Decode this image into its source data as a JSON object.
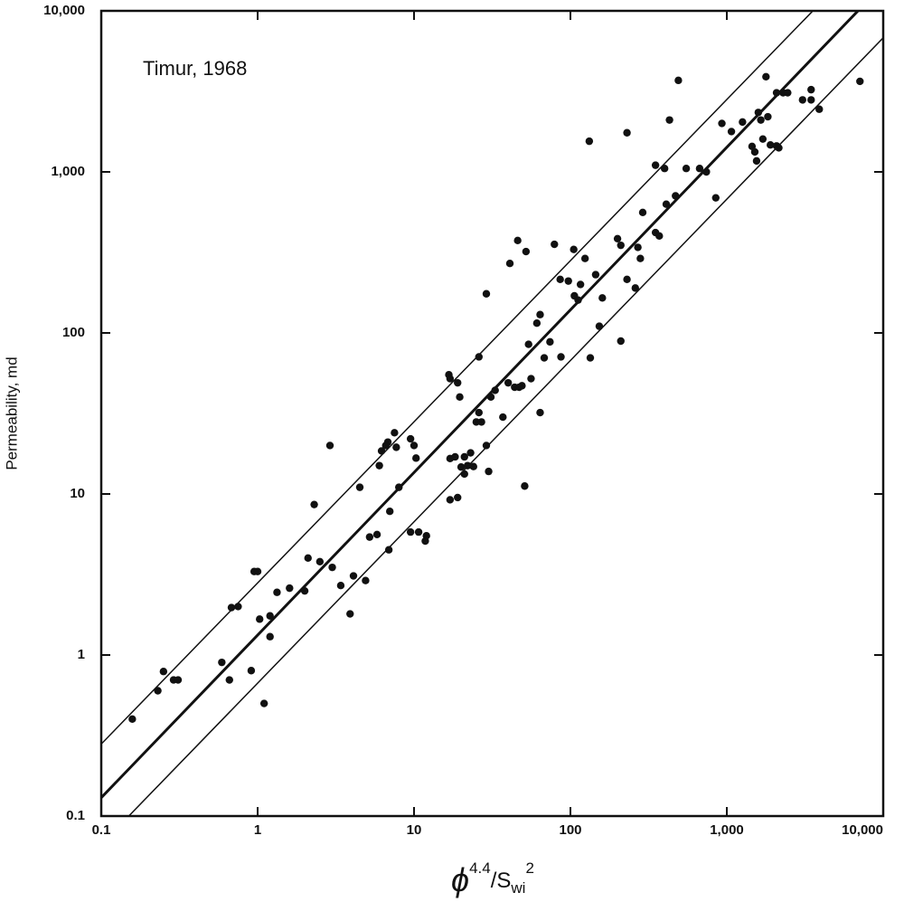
{
  "chart_data": {
    "type": "scatter",
    "annotation": "Timur, 1968",
    "ylabel": "Permeability, md",
    "xlabel": [
      "ϕ",
      "4.4",
      "/S",
      "wi",
      "2"
    ],
    "xscale": "log",
    "yscale": "log",
    "xlim": [
      0.1,
      10000
    ],
    "ylim": [
      0.1,
      10000
    ],
    "xticks": [
      0.1,
      1,
      10,
      100,
      {
        "value": 1000,
        "label": "1,000"
      },
      {
        "value": 10000,
        "label": "10,000"
      }
    ],
    "yticks": [
      0.1,
      1,
      10,
      100,
      {
        "value": 1000,
        "label": "1,000"
      },
      {
        "value": 10000,
        "label": "10,000"
      }
    ],
    "color": "#111111",
    "x": [
      0.158,
      0.23,
      0.25,
      0.29,
      0.31,
      0.59,
      0.66,
      0.68,
      0.75,
      0.91,
      0.95,
      1.0,
      1.03,
      1.1,
      1.2,
      1.2,
      1.33,
      1.6,
      2.0,
      2.1,
      2.3,
      2.5,
      2.9,
      3.0,
      3.4,
      3.9,
      4.1,
      4.5,
      4.9,
      5.2,
      5.8,
      6.0,
      6.2,
      6.6,
      6.8,
      6.9,
      7.0,
      7.5,
      7.7,
      8.0,
      9.5,
      9.5,
      10,
      10.3,
      10.7,
      11.8,
      12,
      16.7,
      17,
      17,
      17,
      18.3,
      19,
      19,
      19.6,
      20,
      21,
      21,
      22,
      23,
      24,
      25,
      26,
      26,
      27,
      29,
      29,
      30,
      31,
      33,
      37,
      40,
      41,
      44,
      46,
      47,
      49,
      51,
      52,
      54,
      56,
      61,
      64,
      64,
      68,
      74,
      79,
      86,
      87,
      97,
      105,
      106,
      112,
      116,
      124,
      132,
      134,
      145,
      153,
      160,
      200,
      210,
      210,
      230,
      230,
      260,
      270,
      280,
      290,
      350,
      350,
      400,
      410,
      470,
      370,
      490,
      430,
      550,
      670,
      740,
      850,
      930,
      1070,
      1260,
      1450,
      1510,
      1550,
      1590,
      1650,
      1700,
      1780,
      1830,
      1900,
      2080,
      2150,
      2080,
      2290,
      2450,
      3050,
      3460,
      3460,
      3900,
      7100
    ],
    "values": [
      0.4,
      0.6,
      0.79,
      0.7,
      0.7,
      0.9,
      0.7,
      1.97,
      2.0,
      0.8,
      3.3,
      3.3,
      1.67,
      0.5,
      1.3,
      1.75,
      2.45,
      2.6,
      2.5,
      4.0,
      8.6,
      3.8,
      20,
      3.5,
      2.7,
      1.8,
      3.1,
      11,
      2.9,
      5.4,
      5.6,
      15,
      18.5,
      20,
      21,
      4.5,
      7.8,
      24,
      19.5,
      11,
      5.8,
      22,
      20,
      16.7,
      5.8,
      5.1,
      5.5,
      55,
      52,
      16.6,
      9.2,
      17,
      49,
      9.5,
      40,
      14.7,
      17,
      13.3,
      15,
      18,
      14.8,
      28,
      71,
      32,
      28,
      20,
      175,
      13.8,
      40,
      44,
      30,
      49,
      270,
      46,
      375,
      46,
      47,
      11.2,
      320,
      85,
      52,
      115,
      130,
      32,
      70,
      88,
      355,
      215,
      71,
      210,
      330,
      170,
      160,
      200,
      290,
      1550,
      70,
      230,
      110,
      165,
      385,
      350,
      89,
      215,
      1750,
      190,
      340,
      290,
      560,
      420,
      1100,
      1050,
      630,
      710,
      400,
      3700,
      2100,
      1050,
      1050,
      1000,
      690,
      2000,
      1780,
      2040,
      1440,
      1330,
      1170,
      2340,
      2100,
      1600,
      3900,
      2200,
      1470,
      1450,
      1410,
      3100,
      3100,
      3100,
      2800,
      3240,
      2800,
      2450,
      3650
    ],
    "lines": [
      {
        "x": [
          0.1,
          3550
        ],
        "values": [
          0.28,
          10000
        ],
        "width": 1.5
      },
      {
        "x": [
          0.1,
          6900
        ],
        "values": [
          0.13,
          10000
        ],
        "width": 3
      },
      {
        "x": [
          0.15,
          10000
        ],
        "values": [
          0.1,
          6800
        ],
        "width": 1.5
      }
    ]
  }
}
